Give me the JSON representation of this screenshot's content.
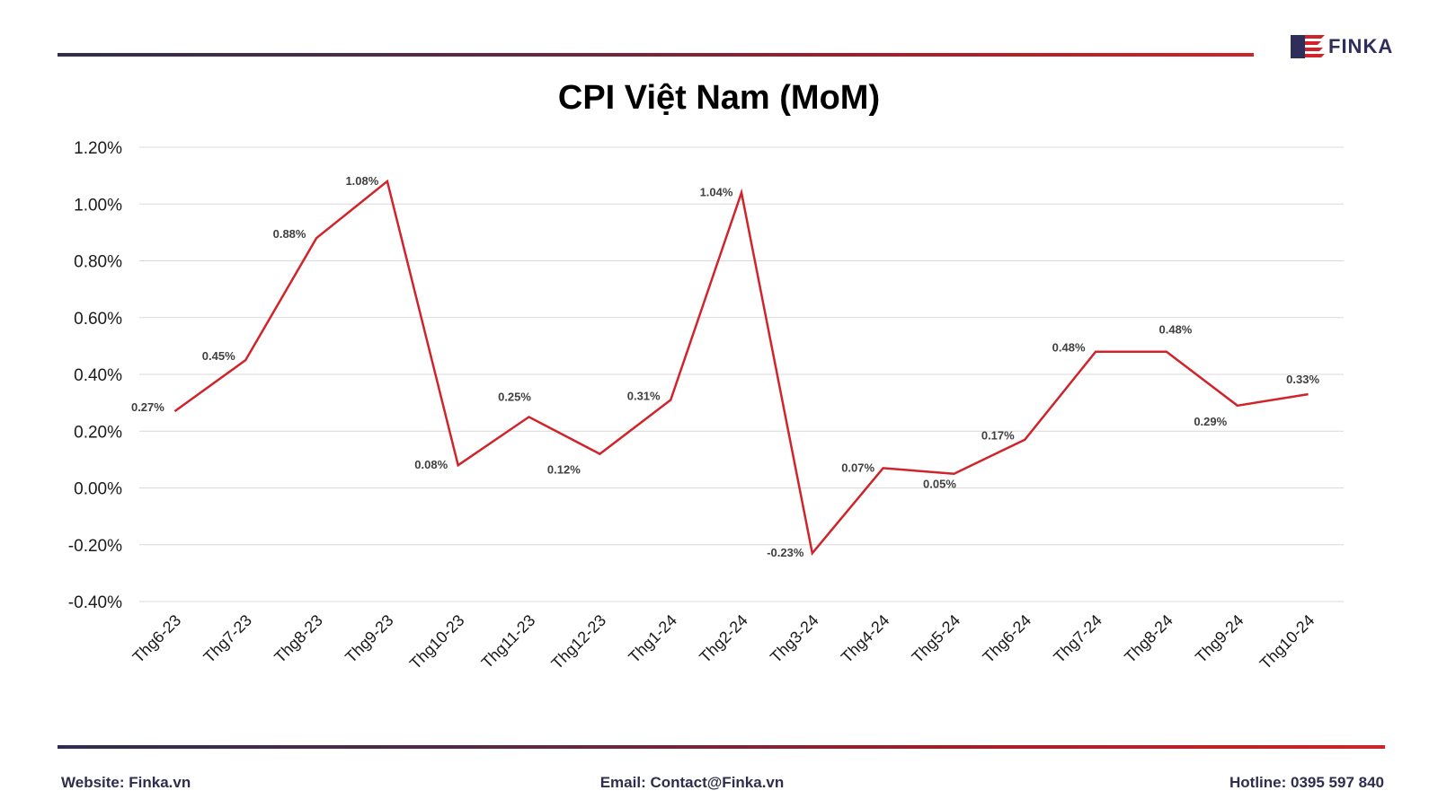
{
  "brand": {
    "name": "FINKA"
  },
  "footer": {
    "website": "Website: Finka.vn",
    "email": "Email: Contact@Finka.vn",
    "hotline": "Hotline: 0395 597 840"
  },
  "colors": {
    "line": "#d0232a",
    "grid": "#d9d9d9",
    "rule_start": "#2f2d4e",
    "rule_end": "#d0232a"
  },
  "chart_data": {
    "type": "line",
    "title": "CPI Việt Nam (MoM)",
    "xlabel": "",
    "ylabel": "",
    "grid": true,
    "ylim": [
      -0.4,
      1.2
    ],
    "yticks": [
      "1.20%",
      "1.00%",
      "0.80%",
      "0.60%",
      "0.40%",
      "0.20%",
      "0.00%",
      "-0.20%",
      "-0.40%"
    ],
    "categories": [
      "Thg6-23",
      "Thg7-23",
      "Thg8-23",
      "Thg9-23",
      "Thg10-23",
      "Thg11-23",
      "Thg12-23",
      "Thg1-24",
      "Thg2-24",
      "Thg3-24",
      "Thg4-24",
      "Thg5-24",
      "Thg6-24",
      "Thg7-24",
      "Thg8-24",
      "Thg9-24",
      "Thg10-24"
    ],
    "series": [
      {
        "values": [
          0.27,
          0.45,
          0.88,
          1.08,
          0.08,
          0.25,
          0.12,
          0.31,
          1.04,
          -0.23,
          0.07,
          0.05,
          0.17,
          0.48,
          0.48,
          0.29,
          0.33
        ],
        "labels": [
          "0.27%",
          "0.45%",
          "0.88%",
          "1.08%",
          "0.08%",
          "0.25%",
          "0.12%",
          "0.31%",
          "1.04%",
          "-0.23%",
          "0.07%",
          "0.05%",
          "0.17%",
          "0.48%",
          "0.48%",
          "0.29%",
          "0.33%"
        ]
      }
    ]
  }
}
